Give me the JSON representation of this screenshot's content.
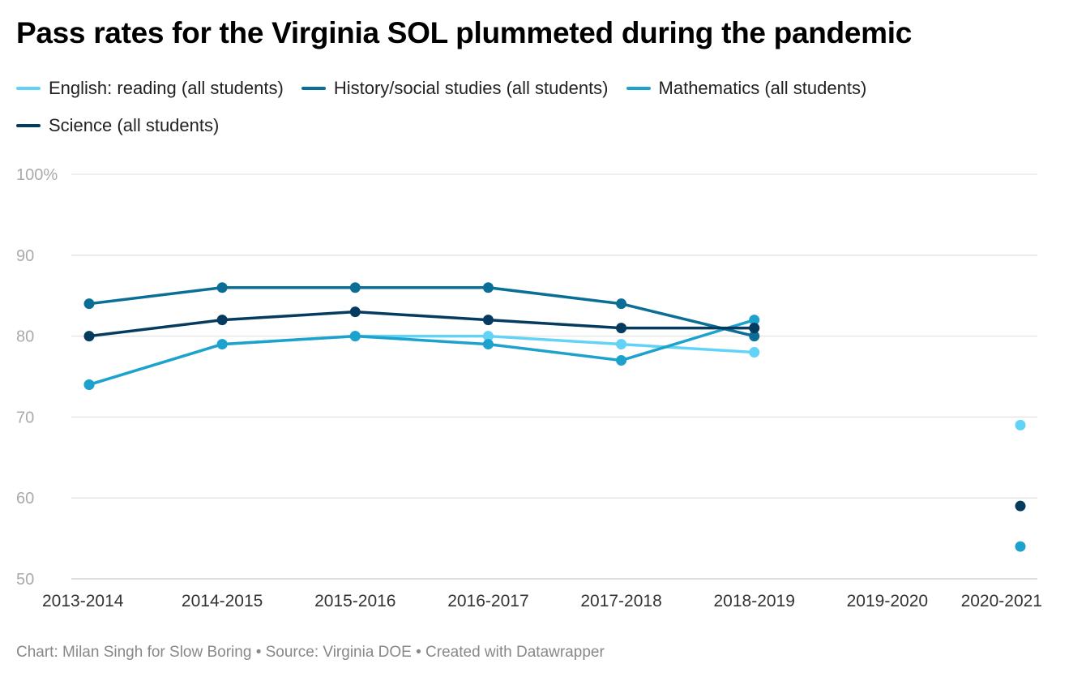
{
  "chart_data": {
    "type": "line",
    "title": "Pass rates for the Virginia SOL plummeted during the pandemic",
    "categories": [
      "2013-2014",
      "2014-2015",
      "2015-2016",
      "2016-2017",
      "2017-2018",
      "2018-2019",
      "2019-2020",
      "2020-2021"
    ],
    "series": [
      {
        "name": "English: reading (all students)",
        "color": "#63d2f7",
        "values": [
          74,
          79,
          80,
          80,
          79,
          78,
          null,
          69
        ]
      },
      {
        "name": "History/social studies (all students)",
        "color": "#0b6e96",
        "values": [
          84,
          86,
          86,
          86,
          84,
          80,
          null,
          null
        ]
      },
      {
        "name": "Mathematics (all students)",
        "color": "#1da2cd",
        "values": [
          74,
          79,
          80,
          79,
          77,
          82,
          null,
          54
        ]
      },
      {
        "name": "Science (all students)",
        "color": "#063b60",
        "values": [
          80,
          82,
          83,
          82,
          81,
          81,
          null,
          59
        ]
      }
    ],
    "draw_order": [
      0,
      2,
      1,
      3
    ],
    "ylim": [
      50,
      100
    ],
    "yticks": [
      {
        "v": 100,
        "label": "100%"
      },
      {
        "v": 90,
        "label": "90"
      },
      {
        "v": 80,
        "label": "80"
      },
      {
        "v": 70,
        "label": "70"
      },
      {
        "v": 60,
        "label": "60"
      },
      {
        "v": 50,
        "label": "50"
      }
    ],
    "xlabel": "",
    "ylabel": "",
    "grid": true,
    "legend": "top"
  },
  "footer": "Chart: Milan Singh for Slow Boring • Source: Virginia DOE • Created with Datawrapper"
}
